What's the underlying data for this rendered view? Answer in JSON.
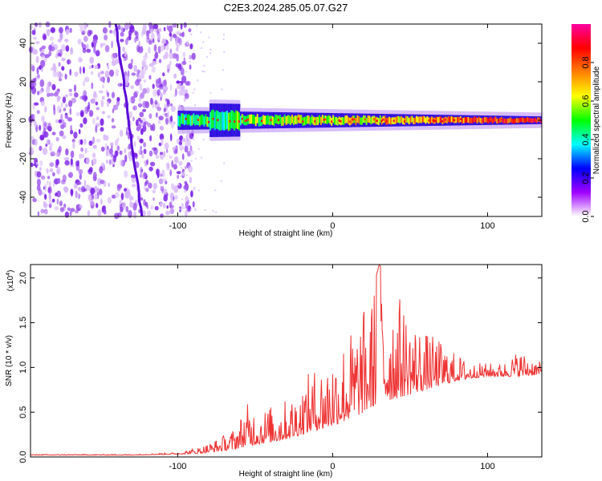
{
  "chart_data": [
    {
      "type": "heatmap",
      "title": "C2E3.2024.285.05.07.G27",
      "xlabel": "Height of straight line (km)",
      "ylabel": "Frequency (Hz)",
      "xlim": [
        -195,
        135
      ],
      "ylim": [
        -50,
        50
      ],
      "x_ticks": [
        -100,
        0,
        100
      ],
      "y_ticks": [
        40,
        20,
        0,
        -20,
        -40
      ],
      "x_tick_labels": [
        "-100",
        "0",
        "100"
      ],
      "y_tick_labels": [
        "40",
        "20",
        "0",
        "-20",
        "-40"
      ],
      "colorbar": {
        "label": "Normalized spectral amplitude",
        "range": [
          0,
          1
        ],
        "ticks": [
          0.0,
          0.2,
          0.4,
          0.6,
          0.8
        ],
        "tick_labels": [
          "0.0",
          "0.2",
          "0.4",
          "0.6",
          "0.8"
        ],
        "colors": [
          "#ffffff",
          "#a000ff",
          "#0000ff",
          "#00ffff",
          "#00ff00",
          "#ffff00",
          "#ff8000",
          "#ff0000",
          "#ff00a0"
        ]
      },
      "noise_region_x": [
        -195,
        -100
      ],
      "signal_band": {
        "x_start": -100,
        "x_end": 135,
        "center_freq": 0,
        "approx_halfwidth_hz": [
          5,
          3,
          2
        ]
      }
    },
    {
      "type": "line",
      "xlabel": "Height of straight line (km)",
      "ylabel": "SNR (10 * v/v)",
      "y_scale_label": "(x10",
      "y_scale_exp": "4",
      "xlim": [
        -195,
        135
      ],
      "ylim": [
        0,
        2.15
      ],
      "x_ticks": [
        -100,
        0,
        100
      ],
      "y_ticks": [
        0.0,
        0.5,
        1.0,
        1.5,
        2.0
      ],
      "x_tick_labels": [
        "-100",
        "0",
        "100"
      ],
      "y_tick_labels": [
        "0.0",
        "0.5",
        "1.0",
        "1.5",
        "2.0"
      ],
      "line_color": "#ee3333",
      "envelope": {
        "x": [
          -195,
          -130,
          -100,
          -85,
          -75,
          -65,
          -55,
          -45,
          -35,
          -25,
          -15,
          -5,
          5,
          15,
          25,
          30,
          40,
          50,
          60,
          70,
          80,
          90,
          100,
          110,
          120,
          135
        ],
        "baseline": [
          0.02,
          0.02,
          0.03,
          0.04,
          0.06,
          0.08,
          0.12,
          0.15,
          0.18,
          0.22,
          0.28,
          0.32,
          0.38,
          0.45,
          0.55,
          0.6,
          0.65,
          0.7,
          0.75,
          0.8,
          0.85,
          0.88,
          0.9,
          0.9,
          0.9,
          0.92
        ],
        "peak": [
          0.03,
          0.03,
          0.05,
          0.12,
          0.2,
          0.3,
          0.6,
          0.55,
          0.6,
          0.7,
          0.95,
          1.1,
          1.3,
          1.5,
          1.8,
          2.15,
          1.9,
          1.6,
          1.4,
          1.3,
          1.15,
          1.05,
          1.05,
          1.05,
          1.2,
          1.05
        ]
      }
    }
  ]
}
